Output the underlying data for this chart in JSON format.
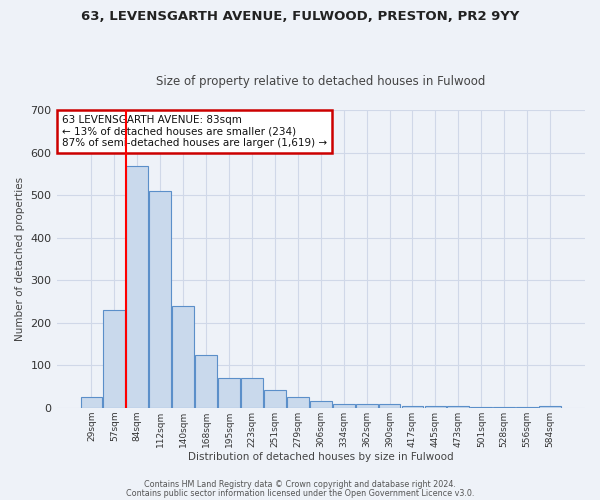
{
  "title1": "63, LEVENSGARTH AVENUE, FULWOOD, PRESTON, PR2 9YY",
  "title2": "Size of property relative to detached houses in Fulwood",
  "xlabel": "Distribution of detached houses by size in Fulwood",
  "ylabel": "Number of detached properties",
  "bar_labels": [
    "29sqm",
    "57sqm",
    "84sqm",
    "112sqm",
    "140sqm",
    "168sqm",
    "195sqm",
    "223sqm",
    "251sqm",
    "279sqm",
    "306sqm",
    "334sqm",
    "362sqm",
    "390sqm",
    "417sqm",
    "445sqm",
    "473sqm",
    "501sqm",
    "528sqm",
    "556sqm",
    "584sqm"
  ],
  "bar_values": [
    25,
    230,
    570,
    510,
    240,
    125,
    70,
    70,
    42,
    25,
    15,
    10,
    10,
    9,
    5,
    5,
    5,
    3,
    2,
    1,
    5
  ],
  "bar_color": "#c9d9ec",
  "bar_edge_color": "#5b8fc9",
  "grid_color": "#d0d8e8",
  "bg_color": "#eef2f8",
  "red_line_index": 2,
  "annotation_line1": "63 LEVENSGARTH AVENUE: 83sqm",
  "annotation_line2": "← 13% of detached houses are smaller (234)",
  "annotation_line3": "87% of semi-detached houses are larger (1,619) →",
  "annotation_box_color": "white",
  "annotation_box_edge_color": "#cc0000",
  "footer1": "Contains HM Land Registry data © Crown copyright and database right 2024.",
  "footer2": "Contains public sector information licensed under the Open Government Licence v3.0.",
  "ylim": [
    0,
    700
  ],
  "yticks": [
    0,
    100,
    200,
    300,
    400,
    500,
    600,
    700
  ]
}
